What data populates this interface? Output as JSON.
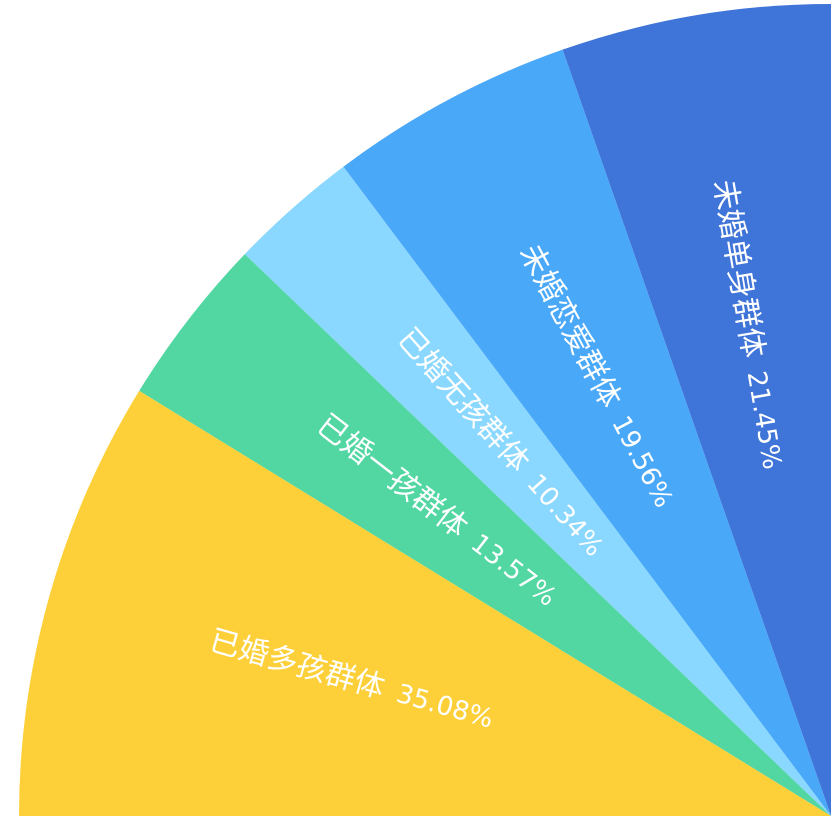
{
  "chart_data": {
    "type": "pie",
    "categories": [
      "未婚单身群体",
      "未婚恋爱群体",
      "已婚无孩群体",
      "已婚一孩群体",
      "已婚多孩群体"
    ],
    "values": [
      21.45,
      19.56,
      10.34,
      13.57,
      35.08
    ],
    "value_labels": [
      "21.45%",
      "19.56%",
      "10.34%",
      "13.57%",
      "35.08%"
    ],
    "colors": [
      "#3f74d8",
      "#4aa8f8",
      "#8ad8ff",
      "#52d6a2",
      "#fdd03a"
    ]
  }
}
